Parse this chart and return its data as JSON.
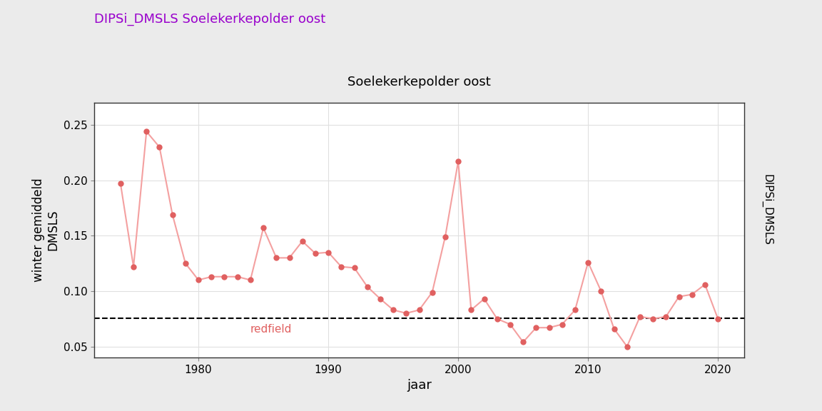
{
  "title": "DIPSi_DMSLS Soelekerkepolder oost",
  "title_color": "#9900CC",
  "panel_title": "Soelekerkepolder oost",
  "ylabel": "winter gemiddeld\nDMSLS",
  "xlabel": "jaar",
  "right_label": "DIPSi_DMSLS",
  "years": [
    1974,
    1975,
    1976,
    1977,
    1978,
    1979,
    1980,
    1981,
    1982,
    1983,
    1984,
    1985,
    1986,
    1987,
    1988,
    1989,
    1990,
    1991,
    1992,
    1993,
    1994,
    1995,
    1996,
    1997,
    1998,
    1999,
    2000,
    2001,
    2002,
    2003,
    2004,
    2005,
    2006,
    2007,
    2008,
    2009,
    2010,
    2011,
    2012,
    2013,
    2014,
    2015,
    2016,
    2017,
    2018,
    2019,
    2020
  ],
  "values": [
    0.197,
    0.122,
    0.244,
    0.23,
    0.169,
    0.125,
    0.11,
    0.113,
    0.113,
    0.113,
    0.11,
    0.157,
    0.13,
    0.13,
    0.145,
    0.134,
    0.135,
    0.122,
    0.121,
    0.104,
    0.093,
    0.083,
    0.08,
    0.083,
    0.099,
    0.149,
    0.217,
    0.083,
    0.093,
    0.075,
    0.07,
    0.054,
    0.067,
    0.067,
    0.07,
    0.083,
    0.126,
    0.1,
    0.066,
    0.05,
    0.077,
    0.075,
    0.077,
    0.095,
    0.097,
    0.106,
    0.075
  ],
  "line_color": "#F4A0A0",
  "marker_color": "#E06060",
  "redfield_value": 0.0756,
  "redfield_label": "redfield",
  "redfield_label_color": "#E06060",
  "ylim": [
    0.04,
    0.27
  ],
  "yticks": [
    0.05,
    0.1,
    0.15,
    0.2,
    0.25
  ],
  "xlim": [
    1972,
    2022
  ],
  "xticks": [
    1980,
    1990,
    2000,
    2010,
    2020
  ],
  "bg_color": "#ebebeb",
  "plot_bg_color": "#ffffff",
  "panel_header_color": "#d8d8d8",
  "right_panel_color": "#d8d8d8",
  "grid_color": "#e0e0e0"
}
